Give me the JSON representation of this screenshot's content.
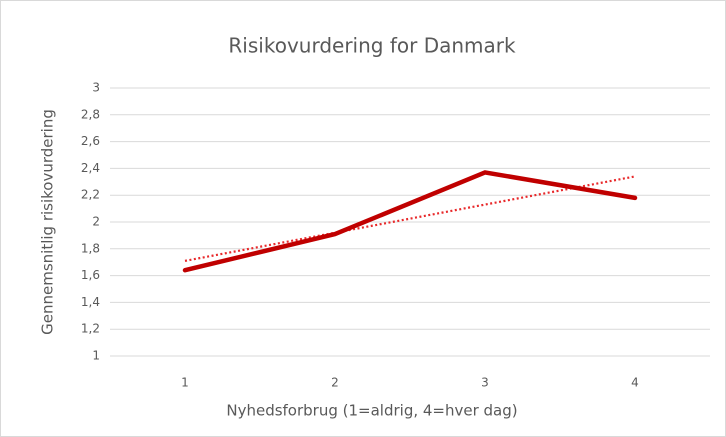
{
  "chart_data": {
    "type": "line",
    "title": "Risikovurdering for Danmark",
    "x_label": "Nyhedsforbrug (1=aldrig, 4=hver dag)",
    "y_label": "Gennemsnitlig risikovurdering",
    "x": [
      1,
      2,
      3,
      4
    ],
    "series": [
      {
        "color": "#c00000",
        "values": [
          1.64,
          1.91,
          2.37,
          2.18
        ]
      }
    ],
    "trendline": {
      "x": [
        1,
        4
      ],
      "values": [
        1.71,
        2.34
      ],
      "color": "#e8292b",
      "dotted": true
    },
    "xlim": [
      0.5,
      4.5
    ],
    "xticks": [
      1,
      2,
      3,
      4
    ],
    "ylim": [
      1,
      3
    ],
    "yticks": [
      1,
      {
        "value": 1.2,
        "label": "1,2"
      },
      {
        "value": 1.4,
        "label": "1,4"
      },
      {
        "value": 1.6,
        "label": "1,6"
      },
      {
        "value": 1.8,
        "label": "1,8"
      },
      2,
      {
        "value": 2.2,
        "label": "2,2"
      },
      {
        "value": 2.4,
        "label": "2,4"
      },
      {
        "value": 2.6,
        "label": "2,6"
      },
      {
        "value": 2.8,
        "label": "2,8"
      },
      3
    ],
    "grid": true
  }
}
